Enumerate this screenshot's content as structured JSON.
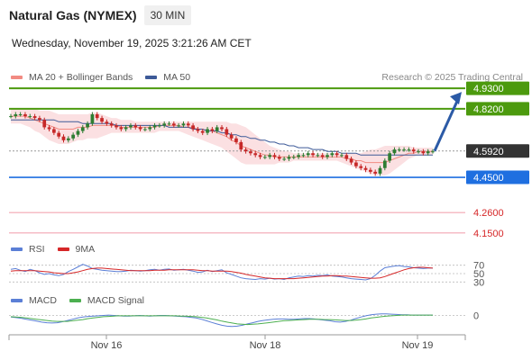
{
  "header": {
    "title": "Natural Gas (NYMEX)",
    "timeframe": "30 MIN",
    "datetime": "Wednesday, November 19, 2025 3:21:26 AM CET"
  },
  "legend": {
    "ma20": {
      "label": "MA 20 + Bollinger Bands",
      "color": "#f28b82"
    },
    "ma50": {
      "label": "MA 50",
      "color": "#3d5a98"
    },
    "credit": "Research © 2025 Trading Central"
  },
  "colors": {
    "up": "#2e7d32",
    "down": "#c62828",
    "resistance": "#4c9a0e",
    "support": "#1f6fe0",
    "support_lines": "#f4a6b3",
    "current": "#333333",
    "band": "#fadadd",
    "arrow": "#2b5aa6"
  },
  "chart_data": [
    {
      "type": "candlestick",
      "ylim": [
        4.12,
        4.96
      ],
      "x_tick_labels": [
        "Nov 16",
        "Nov 18",
        "Nov 19"
      ],
      "levels": [
        {
          "name": "resistance-2",
          "value": 4.93,
          "label": "4.9300",
          "kind": "resistance"
        },
        {
          "name": "resistance-1",
          "value": 4.82,
          "label": "4.8200",
          "kind": "resistance"
        },
        {
          "name": "current-price",
          "value": 4.592,
          "label": "4.5920",
          "kind": "current"
        },
        {
          "name": "pivot",
          "value": 4.45,
          "label": "4.4500",
          "kind": "support"
        },
        {
          "name": "support-1",
          "value": 4.26,
          "label": "4.2600",
          "kind": "support_light"
        },
        {
          "name": "support-2",
          "value": 4.15,
          "label": "4.1500",
          "kind": "support_light"
        }
      ],
      "close": [
        4.78,
        4.79,
        4.79,
        4.78,
        4.78,
        4.77,
        4.76,
        4.72,
        4.71,
        4.69,
        4.67,
        4.65,
        4.66,
        4.68,
        4.7,
        4.72,
        4.74,
        4.79,
        4.77,
        4.75,
        4.74,
        4.73,
        4.72,
        4.71,
        4.72,
        4.73,
        4.72,
        4.71,
        4.71,
        4.72,
        4.73,
        4.73,
        4.74,
        4.74,
        4.73,
        4.73,
        4.74,
        4.73,
        4.71,
        4.7,
        4.69,
        4.71,
        4.7,
        4.72,
        4.71,
        4.68,
        4.66,
        4.64,
        4.6,
        4.59,
        4.58,
        4.57,
        4.56,
        4.56,
        4.57,
        4.56,
        4.55,
        4.55,
        4.56,
        4.56,
        4.57,
        4.57,
        4.58,
        4.57,
        4.57,
        4.56,
        4.57,
        4.58,
        4.57,
        4.57,
        4.55,
        4.53,
        4.51,
        4.5,
        4.49,
        4.48,
        4.47,
        4.5,
        4.54,
        4.58,
        4.6,
        4.6,
        4.6,
        4.6,
        4.59,
        4.59,
        4.58,
        4.59,
        4.59
      ],
      "ma20": [
        4.78,
        4.78,
        4.78,
        4.78,
        4.77,
        4.76,
        4.75,
        4.74,
        4.73,
        4.72,
        4.71,
        4.71,
        4.71,
        4.71,
        4.72,
        4.72,
        4.72,
        4.73,
        4.73,
        4.73,
        4.73,
        4.73,
        4.73,
        4.72,
        4.72,
        4.72,
        4.72,
        4.72,
        4.72,
        4.72,
        4.72,
        4.73,
        4.73,
        4.73,
        4.73,
        4.73,
        4.72,
        4.72,
        4.72,
        4.71,
        4.71,
        4.7,
        4.7,
        4.69,
        4.68,
        4.67,
        4.65,
        4.64,
        4.62,
        4.61,
        4.6,
        4.59,
        4.58,
        4.57,
        4.57,
        4.56,
        4.56,
        4.56,
        4.56,
        4.56,
        4.56,
        4.56,
        4.56,
        4.56,
        4.56,
        4.56,
        4.56,
        4.56,
        4.56,
        4.56,
        4.55,
        4.55,
        4.54,
        4.54,
        4.53,
        4.53,
        4.53,
        4.53,
        4.53,
        4.54,
        4.55,
        4.56,
        4.57,
        4.58,
        4.58,
        4.59,
        4.59,
        4.59,
        4.59
      ],
      "bb_upper": [
        4.82,
        4.82,
        4.82,
        4.82,
        4.82,
        4.82,
        4.81,
        4.81,
        4.81,
        4.8,
        4.79,
        4.79,
        4.79,
        4.79,
        4.79,
        4.79,
        4.79,
        4.8,
        4.8,
        4.79,
        4.78,
        4.77,
        4.77,
        4.76,
        4.76,
        4.76,
        4.75,
        4.75,
        4.75,
        4.75,
        4.75,
        4.75,
        4.75,
        4.75,
        4.75,
        4.75,
        4.75,
        4.75,
        4.75,
        4.75,
        4.75,
        4.75,
        4.75,
        4.75,
        4.75,
        4.75,
        4.74,
        4.74,
        4.73,
        4.72,
        4.7,
        4.68,
        4.66,
        4.64,
        4.62,
        4.61,
        4.6,
        4.59,
        4.59,
        4.58,
        4.58,
        4.58,
        4.58,
        4.58,
        4.58,
        4.58,
        4.58,
        4.58,
        4.58,
        4.58,
        4.58,
        4.58,
        4.58,
        4.58,
        4.59,
        4.6,
        4.6,
        4.61,
        4.62,
        4.62,
        4.62,
        4.62,
        4.62,
        4.62,
        4.61,
        4.61,
        4.61,
        4.61,
        4.61
      ],
      "bb_lower": [
        4.74,
        4.74,
        4.74,
        4.73,
        4.72,
        4.7,
        4.69,
        4.67,
        4.65,
        4.64,
        4.63,
        4.63,
        4.63,
        4.64,
        4.65,
        4.65,
        4.66,
        4.66,
        4.66,
        4.67,
        4.68,
        4.69,
        4.69,
        4.69,
        4.69,
        4.69,
        4.69,
        4.69,
        4.69,
        4.69,
        4.69,
        4.7,
        4.7,
        4.7,
        4.7,
        4.7,
        4.69,
        4.68,
        4.67,
        4.66,
        4.65,
        4.64,
        4.63,
        4.62,
        4.61,
        4.59,
        4.57,
        4.55,
        4.53,
        4.52,
        4.52,
        4.52,
        4.52,
        4.52,
        4.52,
        4.52,
        4.53,
        4.53,
        4.53,
        4.54,
        4.54,
        4.54,
        4.54,
        4.54,
        4.54,
        4.54,
        4.54,
        4.54,
        4.54,
        4.53,
        4.52,
        4.51,
        4.5,
        4.49,
        4.48,
        4.47,
        4.46,
        4.46,
        4.46,
        4.47,
        4.49,
        4.51,
        4.53,
        4.55,
        4.56,
        4.57,
        4.57,
        4.57,
        4.57
      ],
      "ma50": [
        4.76,
        4.76,
        4.76,
        4.76,
        4.76,
        4.76,
        4.76,
        4.76,
        4.76,
        4.76,
        4.75,
        4.75,
        4.75,
        4.75,
        4.75,
        4.74,
        4.74,
        4.74,
        4.74,
        4.74,
        4.74,
        4.74,
        4.73,
        4.73,
        4.73,
        4.73,
        4.73,
        4.73,
        4.73,
        4.73,
        4.73,
        4.73,
        4.73,
        4.72,
        4.72,
        4.72,
        4.72,
        4.72,
        4.71,
        4.71,
        4.71,
        4.7,
        4.7,
        4.7,
        4.69,
        4.69,
        4.68,
        4.68,
        4.67,
        4.67,
        4.66,
        4.66,
        4.65,
        4.65,
        4.64,
        4.64,
        4.63,
        4.63,
        4.62,
        4.62,
        4.61,
        4.61,
        4.61,
        4.6,
        4.6,
        4.6,
        4.59,
        4.59,
        4.59,
        4.58,
        4.58,
        4.58,
        4.58,
        4.57,
        4.57,
        4.57,
        4.57,
        4.57,
        4.57,
        4.57,
        4.57,
        4.57,
        4.57,
        4.57,
        4.57,
        4.57,
        4.57,
        4.57,
        4.57
      ],
      "forecast": {
        "from": 4.592,
        "to": 4.93
      }
    },
    {
      "type": "line",
      "name": "rsi-panel",
      "legend": [
        {
          "label": "RSI",
          "color": "#5b7fd6"
        },
        {
          "label": "9MA",
          "color": "#d62728"
        }
      ],
      "ylim": [
        20,
        80
      ],
      "y_ticks": [
        {
          "value": 70,
          "label": "70"
        },
        {
          "value": 50,
          "label": "50"
        },
        {
          "value": 30,
          "label": "30"
        }
      ],
      "rsi": [
        60,
        62,
        58,
        55,
        60,
        57,
        52,
        48,
        50,
        47,
        45,
        48,
        55,
        60,
        66,
        72,
        68,
        62,
        60,
        58,
        57,
        56,
        55,
        55,
        56,
        58,
        57,
        56,
        57,
        59,
        60,
        58,
        60,
        61,
        58,
        59,
        60,
        58,
        56,
        53,
        54,
        58,
        55,
        57,
        59,
        52,
        48,
        44,
        40,
        38,
        37,
        36,
        38,
        37,
        39,
        37,
        38,
        36,
        40,
        42,
        44,
        43,
        45,
        44,
        46,
        45,
        47,
        44,
        43,
        42,
        40,
        38,
        37,
        36,
        35,
        38,
        46,
        56,
        64,
        66,
        68,
        69,
        67,
        66,
        64,
        63,
        62,
        63,
        63
      ],
      "ma9": [
        56,
        57,
        57,
        57,
        57,
        57,
        56,
        55,
        54,
        52,
        51,
        50,
        50,
        52,
        54,
        57,
        60,
        62,
        63,
        63,
        62,
        61,
        60,
        59,
        58,
        57,
        57,
        57,
        57,
        57,
        58,
        58,
        58,
        59,
        59,
        59,
        59,
        59,
        59,
        58,
        57,
        57,
        56,
        56,
        56,
        56,
        55,
        53,
        51,
        48,
        46,
        44,
        42,
        40,
        39,
        38,
        38,
        38,
        38,
        38,
        39,
        40,
        41,
        42,
        43,
        44,
        44,
        45,
        45,
        44,
        44,
        43,
        42,
        41,
        40,
        39,
        39,
        40,
        43,
        47,
        51,
        55,
        59,
        62,
        64,
        65,
        65,
        64,
        63
      ]
    },
    {
      "type": "line",
      "name": "macd-panel",
      "legend": [
        {
          "label": "MACD",
          "color": "#5b7fd6"
        },
        {
          "label": "MACD Signal",
          "color": "#4caf50"
        }
      ],
      "ylim": [
        -0.05,
        0.03
      ],
      "y_ticks": [
        {
          "value": 0,
          "label": "0"
        }
      ],
      "macd": [
        -0.005,
        -0.007,
        -0.009,
        -0.012,
        -0.015,
        -0.018,
        -0.021,
        -0.023,
        -0.024,
        -0.023,
        -0.02,
        -0.016,
        -0.012,
        -0.008,
        -0.005,
        -0.003,
        -0.002,
        -0.001,
        0.0,
        0.001,
        0.0,
        -0.001,
        -0.002,
        -0.002,
        -0.001,
        0.0,
        -0.001,
        -0.002,
        -0.001,
        0.0,
        0.0,
        -0.001,
        -0.002,
        -0.003,
        -0.004,
        -0.006,
        -0.008,
        -0.012,
        -0.017,
        -0.022,
        -0.027,
        -0.031,
        -0.034,
        -0.035,
        -0.034,
        -0.031,
        -0.027,
        -0.023,
        -0.019,
        -0.016,
        -0.014,
        -0.012,
        -0.011,
        -0.011,
        -0.012,
        -0.012,
        -0.011,
        -0.01,
        -0.01,
        -0.011,
        -0.013,
        -0.015,
        -0.017,
        -0.02,
        -0.021,
        -0.019,
        -0.015,
        -0.01,
        -0.005,
        -0.001,
        0.002,
        0.004,
        0.005,
        0.005,
        0.004,
        0.003,
        0.002,
        0.002,
        0.001,
        0.001,
        0.001,
        0.001,
        0.001
      ],
      "signal": [
        -0.004,
        -0.005,
        -0.006,
        -0.008,
        -0.01,
        -0.012,
        -0.014,
        -0.016,
        -0.018,
        -0.019,
        -0.019,
        -0.019,
        -0.017,
        -0.015,
        -0.013,
        -0.01,
        -0.008,
        -0.006,
        -0.004,
        -0.003,
        -0.002,
        -0.001,
        -0.001,
        -0.001,
        -0.001,
        -0.001,
        -0.001,
        -0.001,
        -0.001,
        -0.001,
        -0.001,
        -0.001,
        -0.001,
        -0.002,
        -0.002,
        -0.003,
        -0.004,
        -0.006,
        -0.008,
        -0.011,
        -0.014,
        -0.018,
        -0.021,
        -0.024,
        -0.027,
        -0.028,
        -0.029,
        -0.028,
        -0.027,
        -0.025,
        -0.023,
        -0.021,
        -0.019,
        -0.017,
        -0.016,
        -0.015,
        -0.014,
        -0.013,
        -0.012,
        -0.012,
        -0.012,
        -0.013,
        -0.013,
        -0.014,
        -0.015,
        -0.016,
        -0.016,
        -0.015,
        -0.013,
        -0.011,
        -0.008,
        -0.006,
        -0.004,
        -0.002,
        -0.001,
        0.0,
        0.001,
        0.001,
        0.001,
        0.001,
        0.001,
        0.001,
        0.001
      ]
    }
  ]
}
